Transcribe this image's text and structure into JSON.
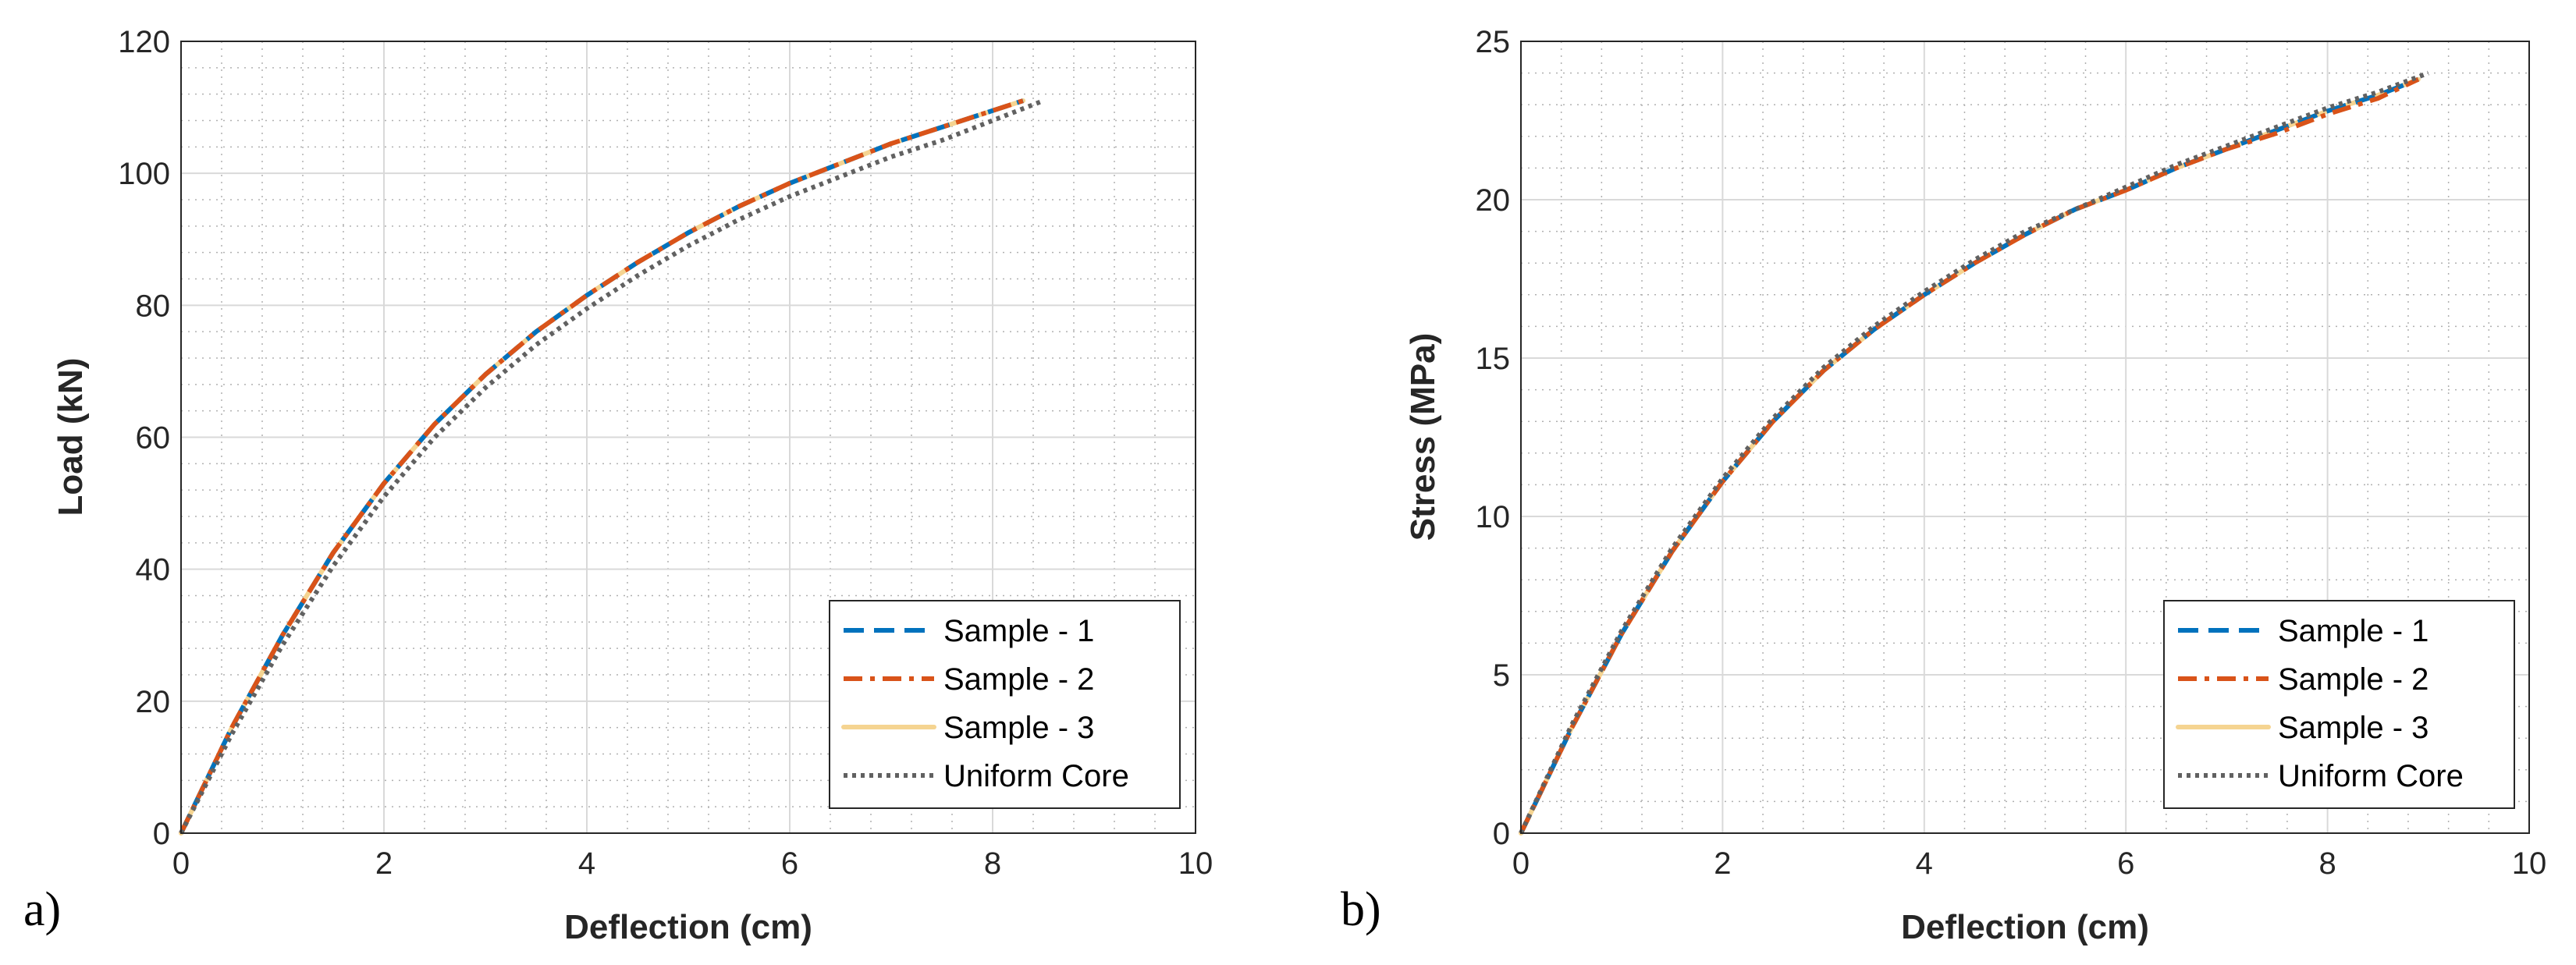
{
  "panels": [
    {
      "label": "a)",
      "chart_data": {
        "type": "line",
        "xlabel": "Deflection (cm)",
        "ylabel": "Load (kN)",
        "xlim": [
          0,
          10
        ],
        "ylim": [
          0,
          120
        ],
        "xticks": [
          0,
          2,
          4,
          6,
          8,
          10
        ],
        "yticks": [
          0,
          20,
          40,
          60,
          80,
          100,
          120
        ],
        "grid": true,
        "minor_grid": true,
        "legend_position": "bottom-right",
        "series": [
          {
            "name": "Sample - 1",
            "color": "#0072BD",
            "style": "dashed",
            "x": [
              0,
              0.5,
              1,
              1.5,
              2,
              2.5,
              3,
              3.5,
              4,
              4.5,
              5,
              5.5,
              6,
              6.5,
              7,
              7.5,
              8,
              8.3
            ],
            "y": [
              0,
              16,
              30,
              42.5,
              53,
              62,
              69.5,
              76,
              81.5,
              86.5,
              91,
              95,
              98.5,
              101.5,
              104.5,
              107,
              109.5,
              111
            ]
          },
          {
            "name": "Sample - 2",
            "color": "#D95319",
            "style": "dashdot",
            "x": [
              0,
              0.5,
              1,
              1.5,
              2,
              2.5,
              3,
              3.5,
              4,
              4.5,
              5,
              5.5,
              6,
              6.5,
              7,
              7.5,
              8,
              8.3
            ],
            "y": [
              0,
              16,
              30,
              42.5,
              53,
              62,
              69.5,
              76,
              81.5,
              86.5,
              91,
              95,
              98.5,
              101.5,
              104.5,
              107,
              109.5,
              111
            ]
          },
          {
            "name": "Sample - 3",
            "color": "#F5D491",
            "style": "solid",
            "x": [
              0,
              0.5,
              1,
              1.5,
              2,
              2.5,
              3,
              3.5,
              4,
              4.5,
              5,
              5.5,
              6,
              6.5,
              7,
              7.5,
              8,
              8.3
            ],
            "y": [
              0,
              16,
              30,
              42.5,
              53,
              62,
              69.5,
              76,
              81.5,
              86.5,
              91,
              95,
              98.5,
              101.5,
              104.5,
              107,
              109.5,
              111
            ]
          },
          {
            "name": "Uniform Core",
            "color": "#616161",
            "style": "dotted",
            "x": [
              0,
              0.5,
              1,
              1.5,
              2,
              2.5,
              3,
              3.5,
              4,
              4.5,
              5,
              5.5,
              6,
              6.5,
              7,
              7.5,
              8,
              8.5
            ],
            "y": [
              0,
              15,
              28.5,
              40.5,
              51,
              60,
              67.5,
              74,
              79.5,
              84.5,
              89,
              93,
              96.5,
              99.5,
              102.5,
              105,
              108,
              111
            ]
          }
        ]
      }
    },
    {
      "label": "b)",
      "chart_data": {
        "type": "line",
        "xlabel": "Deflection (cm)",
        "ylabel": "Stress (MPa)",
        "xlim": [
          0,
          10
        ],
        "ylim": [
          0,
          25
        ],
        "xticks": [
          0,
          2,
          4,
          6,
          8,
          10
        ],
        "yticks": [
          0,
          5,
          10,
          15,
          20,
          25
        ],
        "grid": true,
        "minor_grid": true,
        "legend_position": "bottom-right",
        "series": [
          {
            "name": "Sample - 1",
            "color": "#0072BD",
            "style": "dashed",
            "x": [
              0,
              0.5,
              1,
              1.5,
              2,
              2.5,
              3,
              3.5,
              4,
              4.5,
              5,
              5.5,
              6,
              6.5,
              7,
              7.5,
              8,
              8.5,
              8.9
            ],
            "y": [
              0,
              3.3,
              6.3,
              8.9,
              11.1,
              13,
              14.6,
              15.9,
              17,
              18,
              18.9,
              19.7,
              20.3,
              21,
              21.6,
              22.2,
              22.8,
              23.3,
              23.8
            ]
          },
          {
            "name": "Sample - 2",
            "color": "#D95319",
            "style": "dashdot",
            "x": [
              0,
              0.5,
              1,
              1.5,
              2,
              2.5,
              3,
              3.5,
              4,
              4.5,
              5,
              5.5,
              6,
              6.5,
              7,
              7.5,
              8,
              8.5,
              8.9
            ],
            "y": [
              0,
              3.3,
              6.3,
              8.9,
              11.1,
              13,
              14.6,
              15.9,
              17,
              18,
              18.9,
              19.7,
              20.3,
              21,
              21.6,
              22.1,
              22.7,
              23.2,
              23.8
            ]
          },
          {
            "name": "Sample - 3",
            "color": "#F5D491",
            "style": "solid",
            "x": [
              0,
              0.5,
              1,
              1.5,
              2,
              2.5,
              3,
              3.5,
              4,
              4.5,
              5,
              5.5,
              6,
              6.5,
              7,
              7.5,
              8,
              8.5,
              8.9
            ],
            "y": [
              0,
              3.3,
              6.3,
              8.9,
              11.1,
              13,
              14.6,
              15.9,
              17,
              18,
              18.9,
              19.7,
              20.3,
              21,
              21.6,
              22.2,
              22.8,
              23.3,
              23.8
            ]
          },
          {
            "name": "Uniform Core",
            "color": "#616161",
            "style": "dotted",
            "x": [
              0,
              0.5,
              1,
              1.5,
              2,
              2.5,
              3,
              3.5,
              4,
              4.5,
              5,
              5.5,
              6,
              6.5,
              7,
              7.5,
              8,
              8.5,
              9
            ],
            "y": [
              0,
              3.4,
              6.4,
              9,
              11.2,
              13.1,
              14.7,
              16,
              17.1,
              18.1,
              19,
              19.7,
              20.4,
              21.1,
              21.7,
              22.3,
              22.9,
              23.4,
              24
            ]
          }
        ]
      }
    }
  ]
}
